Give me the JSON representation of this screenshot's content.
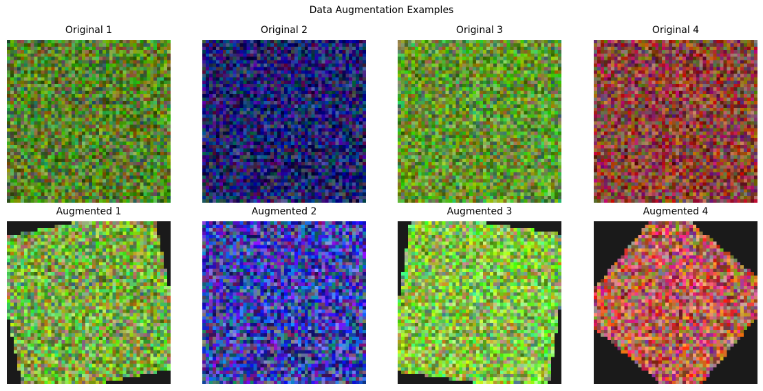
{
  "figure": {
    "title": "Data Augmentation Examples",
    "panels": [
      {
        "title": "Original 1",
        "base_color": "#5a8228",
        "augmented": false
      },
      {
        "title": "Original 2",
        "base_color": "#1e226e",
        "augmented": false
      },
      {
        "title": "Original 3",
        "base_color": "#64962f",
        "augmented": false
      },
      {
        "title": "Original 4",
        "base_color": "#8c463c",
        "augmented": false
      },
      {
        "title": "Augmented 1",
        "base_color": "#5a8228",
        "augmented": true
      },
      {
        "title": "Augmented 2",
        "base_color": "#1e226e",
        "augmented": true
      },
      {
        "title": "Augmented 3",
        "base_color": "#64962f",
        "augmented": true
      },
      {
        "title": "Augmented 4",
        "base_color": "#8c463c",
        "augmented": true
      }
    ],
    "background_color": "#1a1a1a"
  }
}
